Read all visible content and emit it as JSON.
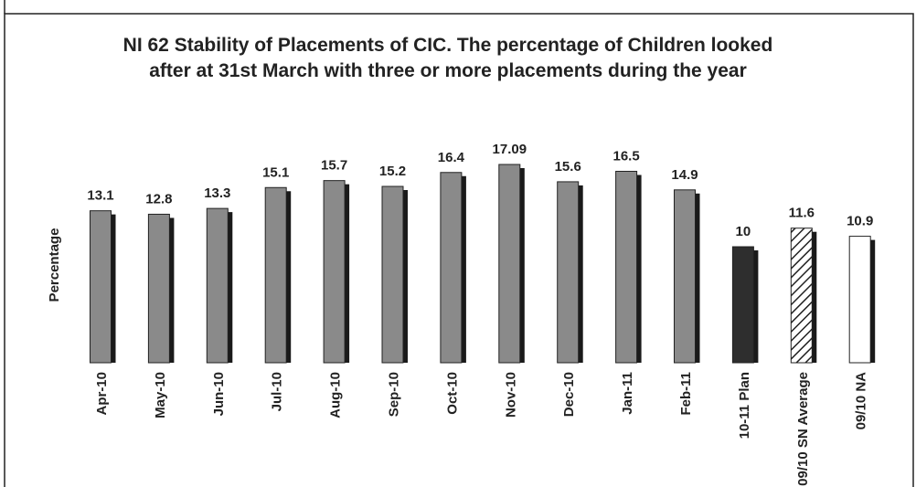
{
  "chart_data": {
    "type": "bar",
    "title": "NI 62 Stability of Placements of CIC. The percentage of Children looked after at 31st March with three or more placements during the year",
    "y_label": "Percentage",
    "categories": [
      "Apr-10",
      "May-10",
      "Jun-10",
      "Jul-10",
      "Aug-10",
      "Sep-10",
      "Oct-10",
      "Nov-10",
      "Dec-10",
      "Jan-11",
      "Feb-11",
      "10-11 Plan",
      "09/10 SN Average",
      "09/10 NA"
    ],
    "values": [
      13.1,
      12.8,
      13.3,
      15.1,
      15.7,
      15.2,
      16.4,
      17.09,
      15.6,
      16.5,
      14.9,
      10,
      11.6,
      10.9
    ],
    "colors": [
      "#8a8a8a",
      "#8a8a8a",
      "#8a8a8a",
      "#8a8a8a",
      "#8a8a8a",
      "#8a8a8a",
      "#8a8a8a",
      "#8a8a8a",
      "#8a8a8a",
      "#8a8a8a",
      "#8a8a8a",
      "#2e2e2e",
      "#ffffff",
      "#ffffff"
    ],
    "hatch": [
      false,
      false,
      false,
      false,
      false,
      false,
      false,
      false,
      false,
      false,
      false,
      false,
      true,
      false
    ],
    "grid": false
  }
}
